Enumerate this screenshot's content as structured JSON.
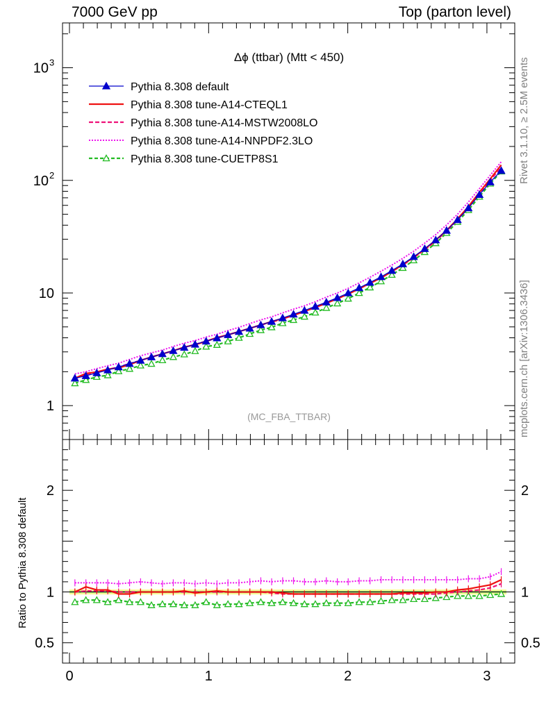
{
  "header": {
    "left": "7000 GeV pp",
    "right": "Top (parton level)"
  },
  "side_labels": {
    "rivet": "Rivet 3.1.10, ≥ 2.5M events",
    "mcplots": "mcplots.cern.ch [arXiv:1306.3436]"
  },
  "chart_data": {
    "type": "line",
    "title": "Δϕ (ttbar) (Mtt < 450)",
    "watermark": "(MC_FBA_TTBAR)",
    "xlim": [
      -0.05,
      3.2
    ],
    "x_ticks": [
      "0",
      "1",
      "2",
      "3"
    ],
    "main": {
      "yscale": "log",
      "ylim": [
        0.5,
        2500
      ],
      "y_ticks": [
        {
          "value": 1,
          "label": "1"
        },
        {
          "value": 10,
          "label": "10"
        },
        {
          "value": 100,
          "label": "10",
          "exp": "2"
        },
        {
          "value": 1000,
          "label": "10",
          "exp": "3"
        }
      ]
    },
    "ratio": {
      "ylabel": "Ratio to Pythia 8.308 default",
      "ylim": [
        0.3,
        2.5
      ],
      "y_ticks": [
        {
          "value": 0.5,
          "label": "0.5"
        },
        {
          "value": 1,
          "label": "1"
        },
        {
          "value": 2,
          "label": "2"
        }
      ]
    },
    "x": [
      0.039,
      0.118,
      0.196,
      0.275,
      0.353,
      0.432,
      0.511,
      0.589,
      0.668,
      0.746,
      0.825,
      0.903,
      0.982,
      1.06,
      1.139,
      1.218,
      1.296,
      1.375,
      1.453,
      1.532,
      1.61,
      1.689,
      1.767,
      1.846,
      1.925,
      2.003,
      2.082,
      2.16,
      2.239,
      2.317,
      2.396,
      2.474,
      2.553,
      2.632,
      2.71,
      2.789,
      2.867,
      2.946,
      3.024,
      3.103
    ],
    "series": [
      {
        "name": "Pythia 8.308 default",
        "color": "#0000cc",
        "dash": "",
        "marker": "triangle-filled",
        "values": [
          1.75,
          1.84,
          1.95,
          2.07,
          2.2,
          2.36,
          2.52,
          2.7,
          2.88,
          3.07,
          3.28,
          3.5,
          3.73,
          3.98,
          4.25,
          4.54,
          4.86,
          5.2,
          5.58,
          6.0,
          6.47,
          7.0,
          7.6,
          8.28,
          9.07,
          9.99,
          11.1,
          12.4,
          13.9,
          15.8,
          18.1,
          21.0,
          24.7,
          29.5,
          35.9,
          44.6,
          56.8,
          74.6,
          96.5,
          122
        ]
      },
      {
        "name": "Pythia 8.308 tune-A14-CTEQL1",
        "color": "#ee1111",
        "dash": "",
        "marker": "none",
        "values": [
          1.75,
          1.93,
          1.99,
          2.11,
          2.16,
          2.31,
          2.52,
          2.7,
          2.88,
          3.07,
          3.31,
          3.47,
          3.73,
          4.02,
          4.25,
          4.54,
          4.86,
          5.2,
          5.58,
          5.94,
          6.34,
          6.86,
          7.45,
          8.11,
          8.89,
          9.79,
          10.9,
          12.2,
          13.6,
          15.5,
          17.9,
          20.8,
          24.5,
          29.5,
          35.9,
          45.5,
          58.5,
          78.3,
          103,
          137
        ]
      },
      {
        "name": "Pythia 8.308 tune-A14-MSTW2008LO",
        "color": "#ee1177",
        "dash": "6,3",
        "marker": "none",
        "values": [
          1.75,
          1.86,
          1.97,
          2.09,
          2.2,
          2.36,
          2.52,
          2.7,
          2.88,
          3.07,
          3.28,
          3.5,
          3.73,
          3.98,
          4.25,
          4.54,
          4.86,
          5.2,
          5.52,
          5.88,
          6.34,
          6.86,
          7.45,
          8.11,
          8.89,
          9.79,
          10.9,
          12.2,
          13.6,
          15.5,
          17.7,
          20.6,
          24.2,
          28.9,
          35.5,
          44.6,
          57.3,
          76.1,
          100,
          132
        ]
      },
      {
        "name": "Pythia 8.308 tune-A14-NNPDF2.3LO",
        "color": "#ee11ee",
        "dash": "2,2",
        "marker": "none",
        "values": [
          1.91,
          2.0,
          2.13,
          2.26,
          2.38,
          2.57,
          2.77,
          2.94,
          3.11,
          3.35,
          3.58,
          3.78,
          4.06,
          4.3,
          4.64,
          4.95,
          5.35,
          5.77,
          6.14,
          6.66,
          7.18,
          7.7,
          8.36,
          9.19,
          10.0,
          11.0,
          12.3,
          13.8,
          15.6,
          17.7,
          20.3,
          23.5,
          27.7,
          33.0,
          40.2,
          50.0,
          64.2,
          84.4,
          111,
          146
        ]
      },
      {
        "name": "Pythia 8.308 tune-CUETP8S1",
        "color": "#22bb22",
        "dash": "5,3",
        "marker": "triangle-open",
        "values": [
          1.58,
          1.69,
          1.8,
          1.86,
          2.02,
          2.12,
          2.27,
          2.35,
          2.53,
          2.7,
          2.85,
          3.05,
          3.34,
          3.46,
          3.72,
          4.0,
          4.33,
          4.68,
          4.96,
          5.4,
          5.76,
          6.16,
          6.7,
          7.37,
          8.08,
          8.91,
          9.99,
          11.2,
          12.7,
          14.5,
          16.7,
          19.5,
          23.1,
          27.7,
          34.1,
          42.8,
          54.5,
          71.6,
          93.6,
          120
        ]
      }
    ],
    "ratio_values": [
      [
        1.0,
        1.0,
        1.0,
        1.0,
        1.0,
        1.0,
        1.0,
        1.0,
        1.0,
        1.0,
        1.0,
        1.0,
        1.0,
        1.0,
        1.0,
        1.0,
        1.0,
        1.0,
        1.0,
        1.0,
        1.0,
        1.0,
        1.0,
        1.0,
        1.0,
        1.0,
        1.0,
        1.0,
        1.0,
        1.0,
        1.0,
        1.0,
        1.0,
        1.0,
        1.0,
        1.0,
        1.0,
        1.0,
        1.0,
        1.0
      ],
      [
        1.0,
        1.05,
        1.02,
        1.02,
        0.98,
        0.98,
        1.0,
        1.0,
        1.0,
        1.0,
        1.01,
        0.99,
        1.0,
        1.01,
        1.0,
        1.0,
        1.0,
        1.0,
        1.0,
        0.99,
        0.98,
        0.98,
        0.98,
        0.98,
        0.98,
        0.98,
        0.98,
        0.98,
        0.98,
        0.98,
        0.99,
        0.99,
        0.99,
        1.0,
        1.0,
        1.02,
        1.03,
        1.05,
        1.07,
        1.12
      ],
      [
        1.0,
        1.01,
        1.01,
        1.01,
        1.0,
        1.0,
        1.0,
        1.0,
        1.0,
        1.0,
        1.0,
        1.0,
        1.0,
        1.0,
        1.0,
        1.0,
        1.0,
        1.0,
        0.99,
        0.98,
        0.98,
        0.98,
        0.98,
        0.98,
        0.98,
        0.98,
        0.98,
        0.98,
        0.98,
        0.98,
        0.98,
        0.98,
        0.98,
        0.98,
        0.99,
        1.0,
        1.01,
        1.02,
        1.04,
        1.08
      ],
      [
        1.09,
        1.09,
        1.09,
        1.09,
        1.08,
        1.09,
        1.1,
        1.09,
        1.08,
        1.09,
        1.09,
        1.08,
        1.09,
        1.08,
        1.09,
        1.09,
        1.1,
        1.11,
        1.1,
        1.11,
        1.11,
        1.1,
        1.1,
        1.11,
        1.1,
        1.1,
        1.11,
        1.11,
        1.12,
        1.12,
        1.12,
        1.12,
        1.12,
        1.12,
        1.12,
        1.12,
        1.13,
        1.13,
        1.15,
        1.2
      ],
      [
        0.9,
        0.92,
        0.92,
        0.9,
        0.92,
        0.9,
        0.9,
        0.87,
        0.88,
        0.88,
        0.87,
        0.87,
        0.9,
        0.87,
        0.88,
        0.88,
        0.89,
        0.9,
        0.89,
        0.9,
        0.89,
        0.88,
        0.88,
        0.89,
        0.89,
        0.89,
        0.9,
        0.9,
        0.91,
        0.92,
        0.92,
        0.93,
        0.93,
        0.94,
        0.95,
        0.96,
        0.96,
        0.96,
        0.97,
        0.98
      ]
    ]
  }
}
